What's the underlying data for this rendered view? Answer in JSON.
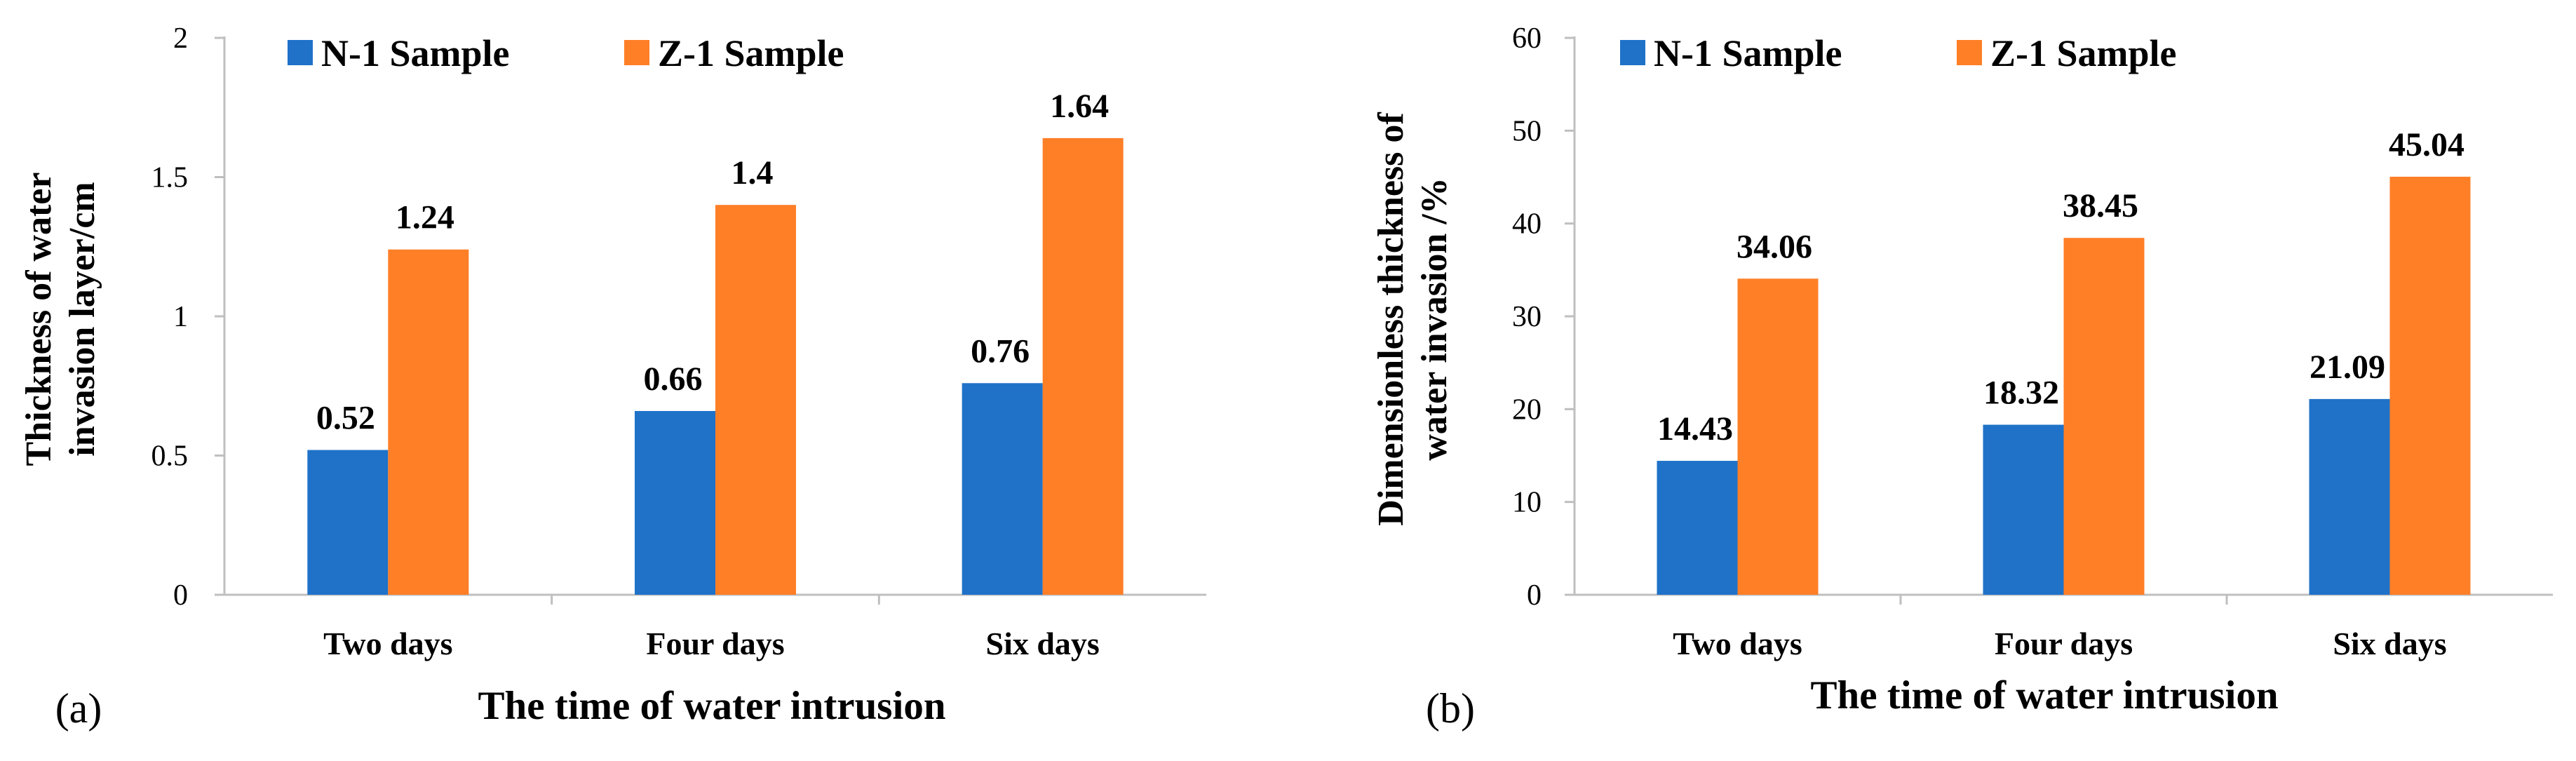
{
  "chart_data": [
    {
      "type": "bar",
      "panel_label": "(a)",
      "categories": [
        "Two days",
        "Four days",
        "Six days"
      ],
      "series": [
        {
          "name": "N-1 Sample",
          "color": "#1f72c8",
          "values": [
            0.52,
            0.66,
            0.76
          ]
        },
        {
          "name": "Z-1 Sample",
          "color": "#ff7f27",
          "values": [
            1.24,
            1.4,
            1.64
          ]
        }
      ],
      "value_labels": [
        [
          "0.52",
          "0.66",
          "0.76"
        ],
        [
          "1.24",
          "1.4",
          "1.64"
        ]
      ],
      "title": "",
      "xlabel": "The time of water intrusion",
      "ylabel": [
        "Thickness of water",
        "invasion layer/cm"
      ],
      "ylim": [
        0,
        2
      ],
      "yticks": [
        0,
        0.5,
        1,
        1.5,
        2
      ],
      "ytick_labels": [
        "0",
        "0.5",
        "1",
        "1.5",
        "2"
      ],
      "grid": false,
      "legend_position": "top"
    },
    {
      "type": "bar",
      "panel_label": "(b)",
      "categories": [
        "Two days",
        "Four days",
        "Six days"
      ],
      "series": [
        {
          "name": "N-1 Sample",
          "color": "#1f72c8",
          "values": [
            14.43,
            18.32,
            21.09
          ]
        },
        {
          "name": "Z-1 Sample",
          "color": "#ff7f27",
          "values": [
            34.06,
            38.45,
            45.04
          ]
        }
      ],
      "value_labels": [
        [
          "14.43",
          "18.32",
          "21.09"
        ],
        [
          "34.06",
          "38.45",
          "45.04"
        ]
      ],
      "title": "",
      "xlabel": "The time of water intrusion",
      "ylabel": [
        "Dimensionless thickness of",
        "water invasion /%"
      ],
      "ylim": [
        0,
        60
      ],
      "yticks": [
        0,
        10,
        20,
        30,
        40,
        50,
        60
      ],
      "ytick_labels": [
        "0",
        "10",
        "20",
        "30",
        "40",
        "50",
        "60"
      ],
      "grid": false,
      "legend_position": "top"
    }
  ]
}
